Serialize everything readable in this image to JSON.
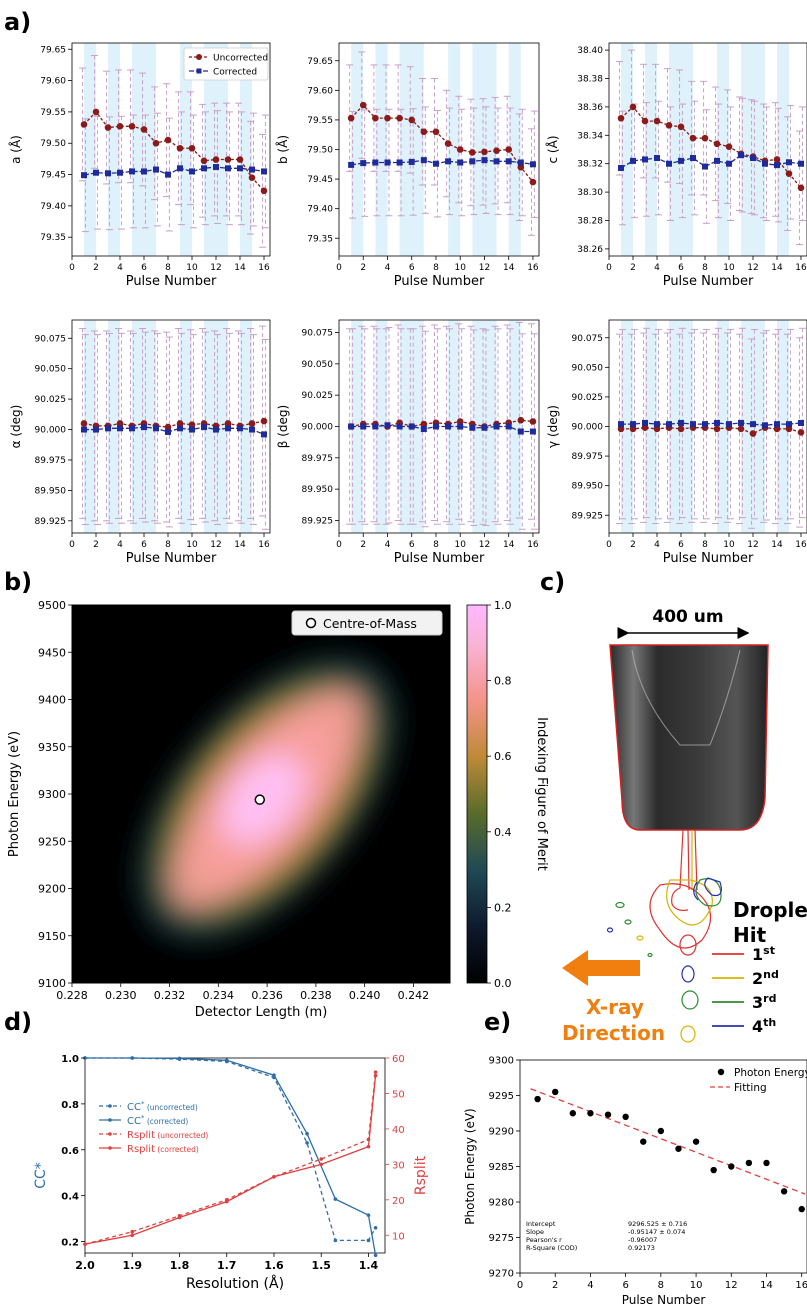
{
  "labels": {
    "panel_a": "a)",
    "panel_b": "b)",
    "panel_c": "c)",
    "panel_d": "d)",
    "panel_e": "e)",
    "legend_uncorrected": "Uncorrected",
    "legend_corrected": "Corrected"
  },
  "colors": {
    "uncorrected": "#8b1a1a",
    "corrected": "#1f2a9b",
    "error_bar": "#c8a0c8",
    "band": "#dff2fb",
    "cc_line": "#2e6fa8",
    "rsplit_line": "#e04040",
    "orange": "#f07f10"
  },
  "chart_data": [
    {
      "type": "line",
      "title": "",
      "xlabel": "Pulse Number",
      "ylabel": "a (Å)",
      "xlim": [
        0,
        16.5
      ],
      "ylim": [
        79.32,
        79.66
      ],
      "xticks": [
        0,
        2,
        4,
        6,
        8,
        10,
        12,
        14,
        16
      ],
      "yticks": [
        79.35,
        79.4,
        79.45,
        79.5,
        79.55,
        79.6,
        79.65
      ],
      "ytick_labels": [
        "79.35",
        "79.40",
        "79.45",
        "79.50",
        "79.55",
        "79.60",
        "79.65"
      ],
      "x": [
        1,
        2,
        3,
        4,
        5,
        6,
        7,
        8,
        9,
        10,
        11,
        12,
        13,
        14,
        15,
        16
      ],
      "bands": [
        [
          1,
          2
        ],
        [
          3,
          4
        ],
        [
          5,
          7
        ],
        [
          9,
          10
        ],
        [
          11,
          13
        ],
        [
          14,
          15
        ]
      ],
      "legend": true,
      "series": [
        {
          "name": "Uncorrected",
          "values": [
            79.53,
            79.55,
            79.525,
            79.527,
            79.527,
            79.522,
            79.5,
            79.505,
            79.492,
            79.492,
            79.472,
            79.474,
            79.474,
            79.474,
            79.445,
            79.424
          ],
          "err": 0.09
        },
        {
          "name": "Corrected",
          "values": [
            79.449,
            79.453,
            79.452,
            79.453,
            79.455,
            79.455,
            79.458,
            79.45,
            79.46,
            79.455,
            79.46,
            79.462,
            79.46,
            79.46,
            79.458,
            79.455
          ],
          "err": 0.09
        }
      ]
    },
    {
      "type": "line",
      "title": "",
      "xlabel": "Pulse Number",
      "ylabel": "b (Å)",
      "xlim": [
        0,
        16.5
      ],
      "ylim": [
        79.32,
        79.68
      ],
      "xticks": [
        0,
        2,
        4,
        6,
        8,
        10,
        12,
        14,
        16
      ],
      "yticks": [
        79.35,
        79.4,
        79.45,
        79.5,
        79.55,
        79.6,
        79.65
      ],
      "ytick_labels": [
        "79.35",
        "79.40",
        "79.45",
        "79.50",
        "79.55",
        "79.60",
        "79.65"
      ],
      "x": [
        1,
        2,
        3,
        4,
        5,
        6,
        7,
        8,
        9,
        10,
        11,
        12,
        13,
        14,
        15,
        16
      ],
      "bands": [
        [
          1,
          2
        ],
        [
          3,
          4
        ],
        [
          5,
          7
        ],
        [
          9,
          10
        ],
        [
          11,
          13
        ],
        [
          14,
          15
        ]
      ],
      "legend": false,
      "series": [
        {
          "name": "Uncorrected",
          "values": [
            79.553,
            79.575,
            79.553,
            79.553,
            79.553,
            79.55,
            79.53,
            79.53,
            79.51,
            79.5,
            79.495,
            79.496,
            79.498,
            79.5,
            79.47,
            79.445
          ],
          "err": 0.09
        },
        {
          "name": "Corrected",
          "values": [
            79.474,
            79.477,
            79.478,
            79.478,
            79.478,
            79.479,
            79.482,
            79.476,
            79.48,
            79.478,
            79.48,
            79.482,
            79.48,
            79.48,
            79.478,
            79.475
          ],
          "err": 0.09
        }
      ]
    },
    {
      "type": "line",
      "title": "",
      "xlabel": "Pulse Number",
      "ylabel": "c (Å)",
      "xlim": [
        0,
        16.5
      ],
      "ylim": [
        38.255,
        38.405
      ],
      "xticks": [
        0,
        2,
        4,
        6,
        8,
        10,
        12,
        14,
        16
      ],
      "yticks": [
        38.26,
        38.28,
        38.3,
        38.32,
        38.34,
        38.36,
        38.38,
        38.4
      ],
      "ytick_labels": [
        "38.26",
        "38.28",
        "38.30",
        "38.32",
        "38.34",
        "38.36",
        "38.38",
        "38.40"
      ],
      "x": [
        1,
        2,
        3,
        4,
        5,
        6,
        7,
        8,
        9,
        10,
        11,
        12,
        13,
        14,
        15,
        16
      ],
      "bands": [
        [
          1,
          2
        ],
        [
          3,
          4
        ],
        [
          5,
          7
        ],
        [
          9,
          10
        ],
        [
          11,
          13
        ],
        [
          14,
          15
        ]
      ],
      "legend": false,
      "series": [
        {
          "name": "Uncorrected",
          "values": [
            38.352,
            38.36,
            38.35,
            38.35,
            38.347,
            38.346,
            38.338,
            38.338,
            38.334,
            38.332,
            38.327,
            38.325,
            38.322,
            38.323,
            38.313,
            38.303
          ],
          "err": 0.04
        },
        {
          "name": "Corrected",
          "values": [
            38.317,
            38.322,
            38.323,
            38.324,
            38.32,
            38.322,
            38.324,
            38.318,
            38.322,
            38.32,
            38.326,
            38.324,
            38.32,
            38.319,
            38.321,
            38.32
          ],
          "err": 0.04
        }
      ]
    },
    {
      "type": "line",
      "title": "",
      "xlabel": "Pulse Number",
      "ylabel": "α (deg)",
      "xlim": [
        0,
        16.5
      ],
      "ylim": [
        89.915,
        90.09
      ],
      "xticks": [
        0,
        2,
        4,
        6,
        8,
        10,
        12,
        14,
        16
      ],
      "yticks": [
        89.925,
        89.95,
        89.975,
        90.0,
        90.025,
        90.05,
        90.075
      ],
      "ytick_labels": [
        "89.925",
        "89.950",
        "89.975",
        "90.000",
        "90.025",
        "90.050",
        "90.075"
      ],
      "x": [
        1,
        2,
        3,
        4,
        5,
        6,
        7,
        8,
        9,
        10,
        11,
        12,
        13,
        14,
        15,
        16
      ],
      "bands": [
        [
          1,
          2
        ],
        [
          3,
          4
        ],
        [
          5,
          7
        ],
        [
          9,
          10
        ],
        [
          11,
          13
        ],
        [
          14,
          15
        ]
      ],
      "legend": false,
      "series": [
        {
          "name": "Uncorrected",
          "values": [
            90.005,
            90.003,
            90.003,
            90.005,
            90.003,
            90.005,
            90.003,
            90.002,
            90.005,
            90.004,
            90.005,
            90.003,
            90.005,
            90.003,
            90.005,
            90.007
          ],
          "err": 0.078
        },
        {
          "name": "Corrected",
          "values": [
            90.0,
            90.0,
            90.001,
            90.001,
            90.001,
            90.002,
            90.001,
            89.998,
            90.001,
            90.0,
            90.002,
            90.0,
            90.001,
            90.001,
            90.0,
            89.996
          ],
          "err": 0.078
        }
      ]
    },
    {
      "type": "line",
      "title": "",
      "xlabel": "Pulse Number",
      "ylabel": "β (deg)",
      "xlim": [
        0,
        16.5
      ],
      "ylim": [
        89.915,
        90.085
      ],
      "xticks": [
        0,
        2,
        4,
        6,
        8,
        10,
        12,
        14,
        16
      ],
      "yticks": [
        89.925,
        89.95,
        89.975,
        90.0,
        90.025,
        90.05,
        90.075
      ],
      "ytick_labels": [
        "89.925",
        "89.950",
        "89.975",
        "90.000",
        "90.025",
        "90.050",
        "90.075"
      ],
      "x": [
        1,
        2,
        3,
        4,
        5,
        6,
        7,
        8,
        9,
        10,
        11,
        12,
        13,
        14,
        15,
        16
      ],
      "bands": [
        [
          1,
          2
        ],
        [
          3,
          4
        ],
        [
          5,
          7
        ],
        [
          9,
          10
        ],
        [
          11,
          13
        ],
        [
          14,
          15
        ]
      ],
      "legend": false,
      "series": [
        {
          "name": "Uncorrected",
          "values": [
            90.0,
            90.002,
            90.002,
            90.0,
            90.003,
            90.0,
            90.002,
            90.003,
            90.002,
            90.004,
            90.002,
            90.0,
            90.002,
            90.003,
            90.005,
            90.004
          ],
          "err": 0.078
        },
        {
          "name": "Corrected",
          "values": [
            90.0,
            90.0,
            90.0,
            90.001,
            90.0,
            90.0,
            89.998,
            90.0,
            90.0,
            90.0,
            89.999,
            89.999,
            90.0,
            90.0,
            89.996,
            89.996
          ],
          "err": 0.078
        }
      ]
    },
    {
      "type": "line",
      "title": "",
      "xlabel": "Pulse Number",
      "ylabel": "γ (deg)",
      "xlim": [
        0,
        16.5
      ],
      "ylim": [
        89.91,
        90.09
      ],
      "xticks": [
        0,
        2,
        4,
        6,
        8,
        10,
        12,
        14,
        16
      ],
      "yticks": [
        89.925,
        89.95,
        89.975,
        90.0,
        90.025,
        90.05,
        90.075
      ],
      "ytick_labels": [
        "89.925",
        "89.950",
        "89.975",
        "90.000",
        "90.025",
        "90.050",
        "90.075"
      ],
      "x": [
        1,
        2,
        3,
        4,
        5,
        6,
        7,
        8,
        9,
        10,
        11,
        12,
        13,
        14,
        15,
        16
      ],
      "bands": [
        [
          1,
          2
        ],
        [
          3,
          4
        ],
        [
          5,
          7
        ],
        [
          9,
          10
        ],
        [
          11,
          13
        ],
        [
          14,
          15
        ]
      ],
      "legend": false,
      "series": [
        {
          "name": "Uncorrected",
          "values": [
            89.998,
            89.998,
            89.999,
            89.998,
            89.999,
            89.998,
            89.999,
            89.999,
            89.998,
            89.999,
            89.998,
            89.994,
            89.999,
            89.998,
            89.998,
            89.995
          ],
          "err": 0.08
        },
        {
          "name": "Corrected",
          "values": [
            90.002,
            90.002,
            90.003,
            90.002,
            90.002,
            90.003,
            90.002,
            90.002,
            90.003,
            90.002,
            90.003,
            90.002,
            90.001,
            90.002,
            90.002,
            90.003
          ],
          "err": 0.08
        }
      ]
    },
    {
      "type": "heatmap",
      "title": "",
      "xlabel": "Detector Length (m)",
      "ylabel": "Photon Energy (eV)",
      "xlim": [
        0.228,
        0.2435
      ],
      "ylim": [
        9100,
        9500
      ],
      "xticks": [
        0.228,
        0.23,
        0.232,
        0.234,
        0.236,
        0.238,
        0.24,
        0.242
      ],
      "xtick_labels": [
        "0.228",
        "0.230",
        "0.232",
        "0.234",
        "0.236",
        "0.238",
        "0.240",
        "0.242"
      ],
      "yticks": [
        9100,
        9150,
        9200,
        9250,
        9300,
        9350,
        9400,
        9450,
        9500
      ],
      "ytick_labels": [
        "9100",
        "9150",
        "9200",
        "9250",
        "9300",
        "9350",
        "9400",
        "9450",
        "9500"
      ],
      "colorbar_label": "Indexing Figure of Merit",
      "colorbar_ticks": [
        0.0,
        0.2,
        0.4,
        0.6,
        0.8,
        1.0
      ],
      "colorbar_tick_labels": [
        "0.0",
        "0.2",
        "0.4",
        "0.6",
        "0.8",
        "1.0"
      ],
      "legend_label": "Centre-of-Mass",
      "centre_of_mass": [
        0.2357,
        9294
      ],
      "ridge": [
        [
          0.2318,
          9180
        ],
        [
          0.236,
          9295
        ],
        [
          0.2385,
          9385
        ]
      ]
    },
    {
      "type": "diagram",
      "title": "",
      "scale_label": "400 um",
      "droplet_label_line1": "Droplet",
      "droplet_label_line2": "Hit",
      "hits": [
        {
          "n": "1",
          "sup": "st",
          "color": "#e03030"
        },
        {
          "n": "2",
          "sup": "nd",
          "color": "#d8b400"
        },
        {
          "n": "3",
          "sup": "rd",
          "color": "#2e8b30"
        },
        {
          "n": "4",
          "sup": "th",
          "color": "#2830b0"
        }
      ],
      "xray_line1": "X-ray",
      "xray_line2": "Direction"
    },
    {
      "type": "line",
      "title": "",
      "xlabel": "Resolution (Å)",
      "ylabel": "CC*",
      "ylabel_right": "Rsplit",
      "xlim": [
        2.0,
        1.365
      ],
      "ylim": [
        0.15,
        1.0
      ],
      "ylim_right": [
        5,
        60
      ],
      "xticks": [
        2.0,
        1.9,
        1.8,
        1.7,
        1.6,
        1.5,
        1.4
      ],
      "xtick_labels": [
        "2.0",
        "1.9",
        "1.8",
        "1.7",
        "1.6",
        "1.5",
        "1.4"
      ],
      "yticks": [
        0.2,
        0.4,
        0.6,
        0.8,
        1.0
      ],
      "ytick_labels": [
        "0.2",
        "0.4",
        "0.6",
        "0.8",
        "1.0"
      ],
      "yticks_right": [
        10,
        20,
        30,
        40,
        50,
        60
      ],
      "ytick_labels_right": [
        "10",
        "20",
        "30",
        "40",
        "50",
        "60"
      ],
      "series": [
        {
          "name": "CC* (uncorrected)",
          "name_main": "CC",
          "name_sup": "*",
          "name_tail": " (uncorrected)",
          "axis": "left",
          "dash": true,
          "color": "#2e6fa8",
          "x": [
            2.0,
            1.9,
            1.8,
            1.7,
            1.6,
            1.53,
            1.47,
            1.4,
            1.385
          ],
          "y": [
            1.0,
            1.0,
            0.995,
            0.985,
            0.915,
            0.63,
            0.205,
            0.205,
            0.26
          ]
        },
        {
          "name": "CC* (corrected)",
          "name_main": "CC",
          "name_sup": "*",
          "name_tail": " (corrected)",
          "axis": "left",
          "dash": false,
          "color": "#2e6fa8",
          "x": [
            2.0,
            1.9,
            1.8,
            1.7,
            1.6,
            1.53,
            1.47,
            1.4,
            1.385
          ],
          "y": [
            1.0,
            1.0,
            0.998,
            0.99,
            0.925,
            0.67,
            0.385,
            0.315,
            0.14
          ]
        },
        {
          "name": "Rsplit (uncorrected)",
          "name_main": "Rsplit",
          "name_sup": "",
          "name_tail": " (uncorrected)",
          "axis": "right",
          "dash": true,
          "color": "#e04040",
          "x": [
            2.0,
            1.9,
            1.8,
            1.7,
            1.6,
            1.5,
            1.4,
            1.385
          ],
          "y": [
            7.5,
            11,
            15.5,
            20,
            26.5,
            31.5,
            37,
            56
          ]
        },
        {
          "name": "Rsplit (corrected)",
          "name_main": "Rsplit",
          "name_sup": "",
          "name_tail": " (corrected)",
          "axis": "right",
          "dash": false,
          "color": "#e04040",
          "x": [
            2.0,
            1.9,
            1.8,
            1.7,
            1.6,
            1.5,
            1.4,
            1.385
          ],
          "y": [
            7.5,
            10,
            15,
            19.5,
            26.5,
            30,
            35,
            55
          ]
        }
      ]
    },
    {
      "type": "scatter",
      "title": "",
      "xlabel": "Pulse Number",
      "ylabel": "Photon Energy (eV)",
      "xlim": [
        0,
        16.3
      ],
      "ylim": [
        9270,
        9300
      ],
      "xticks": [
        0,
        2,
        4,
        6,
        8,
        10,
        12,
        14,
        16
      ],
      "yticks": [
        9270,
        9275,
        9280,
        9285,
        9290,
        9295,
        9300
      ],
      "x": [
        1,
        2,
        3,
        4,
        5,
        6,
        7,
        8,
        9,
        10,
        11,
        12,
        13,
        14,
        15,
        16
      ],
      "y": [
        9294.5,
        9295.5,
        9292.5,
        9292.5,
        9292.3,
        9292,
        9288.5,
        9290,
        9287.5,
        9288.5,
        9284.5,
        9285,
        9285.5,
        9285.5,
        9281.5,
        9279
      ],
      "series_name": "Photon Energy",
      "fit_name": "Fitting",
      "fit_intercept": 9296.525,
      "fit_slope": -0.95147,
      "stats": [
        {
          "label": "Intercept",
          "value": "9296.525 ± 0.716"
        },
        {
          "label": "Slope",
          "value": "-0.95147 ± 0.074"
        },
        {
          "label": "Pearson's r",
          "value": "-0.96007"
        },
        {
          "label": "R-Square (COD)",
          "value": "0.92173"
        }
      ]
    }
  ]
}
